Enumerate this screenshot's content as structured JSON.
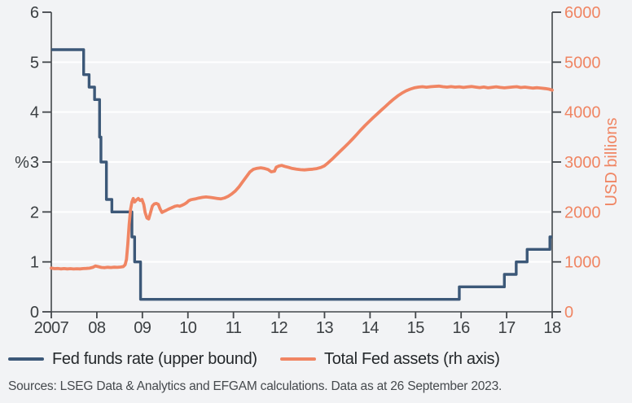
{
  "page": {
    "background": "#f2f3f5"
  },
  "colors": {
    "fed_funds_line": "#3c5878",
    "fed_assets_line": "#f08563",
    "axis": "#43474b",
    "axis_text": "#3a3e41",
    "gridline": "#ffffff"
  },
  "chart_data": {
    "type": "line",
    "title": "",
    "x_axis": {
      "range": [
        2007,
        2018
      ],
      "ticks": [
        2007,
        2008,
        2009,
        2010,
        2011,
        2012,
        2013,
        2014,
        2015,
        2016,
        2017,
        2018
      ],
      "labels": [
        "2007",
        "08",
        "09",
        "10",
        "11",
        "12",
        "13",
        "14",
        "15",
        "16",
        "17",
        "18"
      ]
    },
    "y_axis_left": {
      "label": "%",
      "range": [
        0,
        6
      ],
      "ticks": [
        0,
        1,
        2,
        3,
        4,
        5,
        6
      ],
      "color": "#3a3e41"
    },
    "y_axis_right": {
      "label": "USD billions",
      "range": [
        0,
        6000
      ],
      "ticks": [
        0,
        1000,
        2000,
        3000,
        4000,
        5000,
        6000
      ],
      "color": "#f08563"
    },
    "grid": "horizontal-white",
    "legend_position": "bottom",
    "series": [
      {
        "name": "Fed funds rate (upper bound)",
        "axis": "left",
        "type": "step",
        "color": "#3c5878",
        "points": [
          [
            2007.0,
            5.25
          ],
          [
            2007.71,
            4.75
          ],
          [
            2007.83,
            4.5
          ],
          [
            2007.95,
            4.25
          ],
          [
            2008.06,
            3.5
          ],
          [
            2008.09,
            3.0
          ],
          [
            2008.21,
            2.25
          ],
          [
            2008.33,
            2.0
          ],
          [
            2008.77,
            1.5
          ],
          [
            2008.83,
            1.0
          ],
          [
            2008.96,
            0.25
          ],
          [
            2015.96,
            0.5
          ],
          [
            2016.95,
            0.75
          ],
          [
            2017.21,
            1.0
          ],
          [
            2017.45,
            1.25
          ],
          [
            2017.95,
            1.5
          ],
          [
            2018.0,
            1.5
          ]
        ]
      },
      {
        "name": "Total Fed assets (rh axis)",
        "axis": "right",
        "type": "line",
        "color": "#f08563",
        "points": [
          [
            2007.0,
            875
          ],
          [
            2007.07,
            864
          ],
          [
            2007.14,
            868
          ],
          [
            2007.21,
            860
          ],
          [
            2007.28,
            866
          ],
          [
            2007.35,
            859
          ],
          [
            2007.42,
            864
          ],
          [
            2007.49,
            858
          ],
          [
            2007.56,
            863
          ],
          [
            2007.63,
            859
          ],
          [
            2007.7,
            865
          ],
          [
            2007.77,
            869
          ],
          [
            2007.84,
            874
          ],
          [
            2007.91,
            890
          ],
          [
            2007.97,
            918
          ],
          [
            2008.03,
            905
          ],
          [
            2008.1,
            888
          ],
          [
            2008.17,
            884
          ],
          [
            2008.24,
            892
          ],
          [
            2008.31,
            887
          ],
          [
            2008.38,
            893
          ],
          [
            2008.45,
            890
          ],
          [
            2008.52,
            896
          ],
          [
            2008.58,
            905
          ],
          [
            2008.62,
            940
          ],
          [
            2008.65,
            1050
          ],
          [
            2008.68,
            1350
          ],
          [
            2008.71,
            1750
          ],
          [
            2008.74,
            2050
          ],
          [
            2008.77,
            2200
          ],
          [
            2008.8,
            2270
          ],
          [
            2008.83,
            2200
          ],
          [
            2008.87,
            2240
          ],
          [
            2008.91,
            2270
          ],
          [
            2008.95,
            2230
          ],
          [
            2008.99,
            2250
          ],
          [
            2009.03,
            2150
          ],
          [
            2009.06,
            1990
          ],
          [
            2009.1,
            1880
          ],
          [
            2009.14,
            1860
          ],
          [
            2009.18,
            1990
          ],
          [
            2009.22,
            2120
          ],
          [
            2009.26,
            2160
          ],
          [
            2009.31,
            2170
          ],
          [
            2009.35,
            2150
          ],
          [
            2009.39,
            2060
          ],
          [
            2009.43,
            1990
          ],
          [
            2009.47,
            2010
          ],
          [
            2009.52,
            2030
          ],
          [
            2009.57,
            2055
          ],
          [
            2009.62,
            2075
          ],
          [
            2009.67,
            2095
          ],
          [
            2009.72,
            2115
          ],
          [
            2009.77,
            2125
          ],
          [
            2009.82,
            2115
          ],
          [
            2009.87,
            2135
          ],
          [
            2009.92,
            2155
          ],
          [
            2009.97,
            2185
          ],
          [
            2010.02,
            2225
          ],
          [
            2010.07,
            2245
          ],
          [
            2010.12,
            2255
          ],
          [
            2010.18,
            2265
          ],
          [
            2010.24,
            2280
          ],
          [
            2010.32,
            2292
          ],
          [
            2010.4,
            2300
          ],
          [
            2010.48,
            2292
          ],
          [
            2010.56,
            2283
          ],
          [
            2010.64,
            2272
          ],
          [
            2010.72,
            2262
          ],
          [
            2010.8,
            2280
          ],
          [
            2010.88,
            2310
          ],
          [
            2010.96,
            2360
          ],
          [
            2011.04,
            2420
          ],
          [
            2011.12,
            2500
          ],
          [
            2011.2,
            2600
          ],
          [
            2011.28,
            2700
          ],
          [
            2011.36,
            2800
          ],
          [
            2011.44,
            2855
          ],
          [
            2011.52,
            2875
          ],
          [
            2011.6,
            2885
          ],
          [
            2011.68,
            2872
          ],
          [
            2011.76,
            2850
          ],
          [
            2011.83,
            2805
          ],
          [
            2011.9,
            2815
          ],
          [
            2011.94,
            2895
          ],
          [
            2012.0,
            2920
          ],
          [
            2012.06,
            2932
          ],
          [
            2012.13,
            2912
          ],
          [
            2012.21,
            2892
          ],
          [
            2012.29,
            2872
          ],
          [
            2012.38,
            2856
          ],
          [
            2012.47,
            2846
          ],
          [
            2012.56,
            2842
          ],
          [
            2012.65,
            2850
          ],
          [
            2012.74,
            2856
          ],
          [
            2012.83,
            2868
          ],
          [
            2012.92,
            2890
          ],
          [
            2013.0,
            2925
          ],
          [
            2013.08,
            2985
          ],
          [
            2013.17,
            3060
          ],
          [
            2013.26,
            3140
          ],
          [
            2013.35,
            3220
          ],
          [
            2013.44,
            3300
          ],
          [
            2013.53,
            3380
          ],
          [
            2013.62,
            3465
          ],
          [
            2013.71,
            3555
          ],
          [
            2013.8,
            3645
          ],
          [
            2013.89,
            3730
          ],
          [
            2013.98,
            3810
          ],
          [
            2014.07,
            3890
          ],
          [
            2014.16,
            3965
          ],
          [
            2014.25,
            4040
          ],
          [
            2014.34,
            4115
          ],
          [
            2014.43,
            4190
          ],
          [
            2014.52,
            4260
          ],
          [
            2014.61,
            4325
          ],
          [
            2014.7,
            4380
          ],
          [
            2014.79,
            4425
          ],
          [
            2014.88,
            4460
          ],
          [
            2014.97,
            4485
          ],
          [
            2015.06,
            4500
          ],
          [
            2015.15,
            4508
          ],
          [
            2015.24,
            4498
          ],
          [
            2015.33,
            4508
          ],
          [
            2015.42,
            4515
          ],
          [
            2015.51,
            4520
          ],
          [
            2015.6,
            4508
          ],
          [
            2015.69,
            4500
          ],
          [
            2015.78,
            4510
          ],
          [
            2015.87,
            4500
          ],
          [
            2015.96,
            4506
          ],
          [
            2016.05,
            4494
          ],
          [
            2016.14,
            4504
          ],
          [
            2016.23,
            4512
          ],
          [
            2016.32,
            4500
          ],
          [
            2016.41,
            4490
          ],
          [
            2016.5,
            4502
          ],
          [
            2016.59,
            4486
          ],
          [
            2016.68,
            4496
          ],
          [
            2016.77,
            4506
          ],
          [
            2016.86,
            4494
          ],
          [
            2016.95,
            4486
          ],
          [
            2017.04,
            4494
          ],
          [
            2017.13,
            4502
          ],
          [
            2017.22,
            4508
          ],
          [
            2017.31,
            4492
          ],
          [
            2017.4,
            4500
          ],
          [
            2017.49,
            4490
          ],
          [
            2017.58,
            4480
          ],
          [
            2017.67,
            4488
          ],
          [
            2017.76,
            4478
          ],
          [
            2017.85,
            4470
          ],
          [
            2017.93,
            4460
          ],
          [
            2018.0,
            4440
          ]
        ]
      }
    ]
  },
  "legend": {
    "items": [
      {
        "label": "Fed funds rate (upper bound)",
        "color": "#3c5878"
      },
      {
        "label": "Total Fed assets (rh axis)",
        "color": "#f08563"
      }
    ]
  },
  "footer": {
    "sources": "Sources: LSEG Data & Analytics and EFGAM calculations. Data as at 26 September 2023."
  }
}
